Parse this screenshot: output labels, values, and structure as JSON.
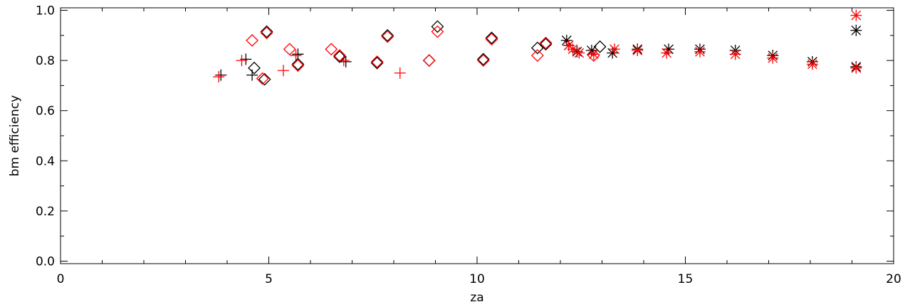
{
  "chart_data": {
    "type": "scatter",
    "xlabel": "za",
    "ylabel": "bm efficiency",
    "xlim": [
      0,
      20
    ],
    "ylim": [
      -0.01,
      1.01
    ],
    "x_ticks": [
      0,
      5,
      10,
      15,
      20
    ],
    "x_tick_labels": [
      "0",
      "5",
      "10",
      "15",
      "20"
    ],
    "y_ticks": [
      0.0,
      0.2,
      0.4,
      0.6,
      0.8,
      1.0
    ],
    "y_tick_labels": [
      "0.0",
      "0.2",
      "0.4",
      "0.6",
      "0.8",
      "1.0"
    ],
    "grid": false,
    "series": [
      {
        "color": "#000000",
        "marker": "plus",
        "points": [
          [
            3.85,
            0.742
          ],
          [
            4.45,
            0.805
          ],
          [
            4.6,
            0.742
          ],
          [
            5.7,
            0.825
          ],
          [
            6.85,
            0.795
          ]
        ]
      },
      {
        "color": "#ff0000",
        "marker": "plus",
        "points": [
          [
            3.8,
            0.735
          ],
          [
            4.35,
            0.8
          ],
          [
            5.35,
            0.76
          ],
          [
            5.65,
            0.82
          ],
          [
            6.8,
            0.8
          ],
          [
            8.15,
            0.75
          ]
        ]
      },
      {
        "color": "#000000",
        "marker": "diamond",
        "points": [
          [
            4.65,
            0.77
          ],
          [
            4.9,
            0.725
          ],
          [
            4.95,
            0.915
          ],
          [
            5.7,
            0.785
          ],
          [
            6.7,
            0.815
          ],
          [
            7.6,
            0.79
          ],
          [
            7.85,
            0.9
          ],
          [
            8.85,
            0.8
          ],
          [
            9.05,
            0.935
          ],
          [
            10.15,
            0.805
          ],
          [
            10.35,
            0.89
          ],
          [
            11.45,
            0.85
          ],
          [
            11.65,
            0.865
          ],
          [
            12.95,
            0.855
          ]
        ]
      },
      {
        "color": "#ff0000",
        "marker": "diamond",
        "points": [
          [
            4.6,
            0.88
          ],
          [
            4.85,
            0.728
          ],
          [
            4.95,
            0.91
          ],
          [
            5.5,
            0.845
          ],
          [
            5.7,
            0.78
          ],
          [
            6.5,
            0.845
          ],
          [
            6.7,
            0.82
          ],
          [
            7.6,
            0.795
          ],
          [
            7.85,
            0.895
          ],
          [
            8.85,
            0.8
          ],
          [
            9.05,
            0.915
          ],
          [
            10.15,
            0.8
          ],
          [
            10.35,
            0.885
          ],
          [
            11.45,
            0.82
          ],
          [
            11.65,
            0.87
          ],
          [
            12.8,
            0.82
          ]
        ]
      },
      {
        "color": "#000000",
        "marker": "asterisk",
        "points": [
          [
            12.15,
            0.88
          ],
          [
            12.2,
            0.86
          ],
          [
            12.4,
            0.835
          ],
          [
            12.75,
            0.84
          ],
          [
            13.25,
            0.83
          ],
          [
            13.85,
            0.845
          ],
          [
            14.6,
            0.845
          ],
          [
            15.35,
            0.845
          ],
          [
            16.2,
            0.84
          ],
          [
            17.1,
            0.82
          ],
          [
            18.05,
            0.795
          ],
          [
            19.1,
            0.92
          ],
          [
            19.1,
            0.775
          ]
        ]
      },
      {
        "color": "#ff0000",
        "marker": "asterisk",
        "points": [
          [
            12.2,
            0.86
          ],
          [
            12.3,
            0.845
          ],
          [
            12.45,
            0.83
          ],
          [
            12.8,
            0.825
          ],
          [
            13.3,
            0.845
          ],
          [
            13.85,
            0.84
          ],
          [
            14.55,
            0.83
          ],
          [
            15.35,
            0.835
          ],
          [
            16.2,
            0.825
          ],
          [
            17.1,
            0.81
          ],
          [
            18.05,
            0.785
          ],
          [
            19.1,
            0.98
          ],
          [
            19.1,
            0.77
          ]
        ]
      }
    ]
  }
}
